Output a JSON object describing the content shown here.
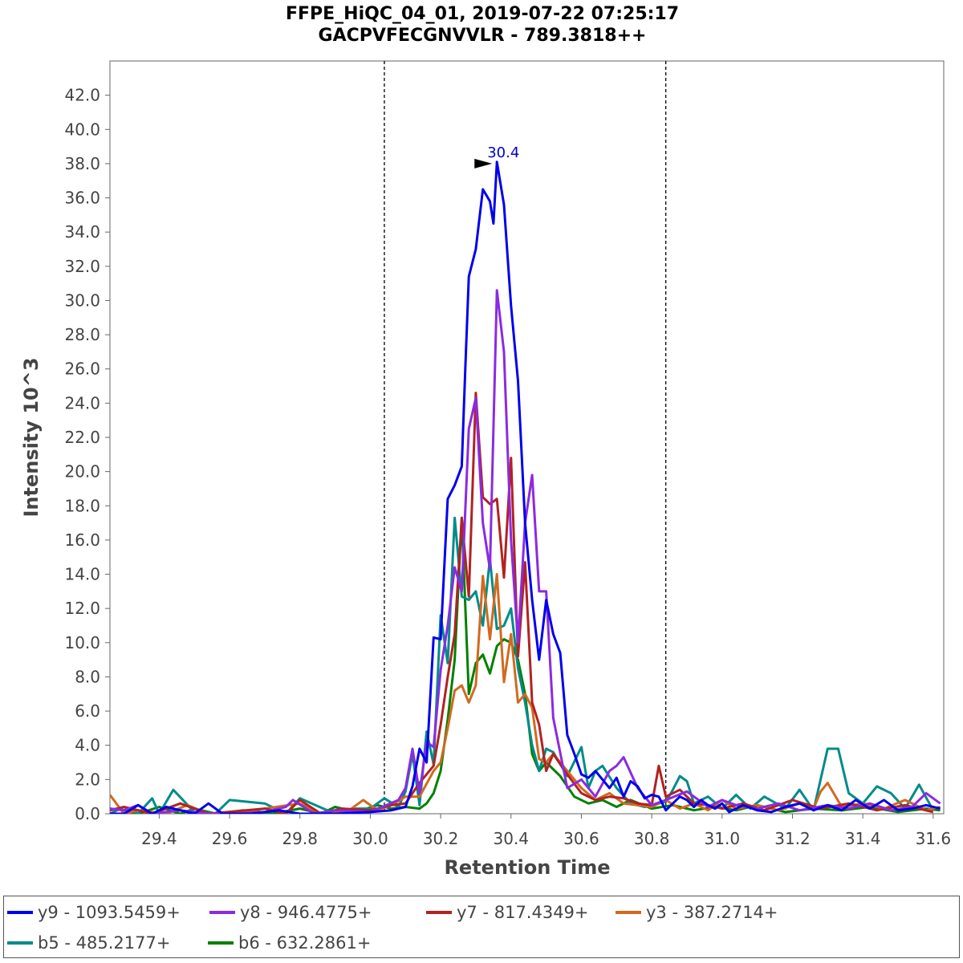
{
  "chart_data": {
    "type": "line",
    "title": "FFPE_HiQC_04_01, 2019-07-22 07:25:17",
    "subtitle": "GACPVFECGNVVLR - 789.3818++",
    "xlabel": "Retention Time",
    "ylabel": "Intensity 10^3",
    "xlim": [
      29.26,
      31.63
    ],
    "ylim": [
      0,
      44
    ],
    "xticks": [
      "29.4",
      "29.6",
      "29.8",
      "30.0",
      "30.2",
      "30.4",
      "30.6",
      "30.8",
      "31.0",
      "31.2",
      "31.4",
      "31.6"
    ],
    "yticks": [
      "0.0",
      "2.0",
      "4.0",
      "6.0",
      "8.0",
      "10.0",
      "12.0",
      "14.0",
      "16.0",
      "18.0",
      "20.0",
      "22.0",
      "24.0",
      "26.0",
      "28.0",
      "30.0",
      "32.0",
      "34.0",
      "36.0",
      "38.0",
      "40.0",
      "42.0"
    ],
    "boundaries": [
      30.04,
      30.84
    ],
    "peak_annotation": {
      "label": "30.4",
      "x": 30.36,
      "y": 38.0
    },
    "series": [
      {
        "name": "y9 - 1093.5459+",
        "color": "#0000ee",
        "x": [
          29.26,
          29.3,
          29.34,
          29.38,
          29.42,
          29.5,
          29.54,
          29.58,
          29.66,
          29.74,
          29.8,
          29.9,
          30.0,
          30.06,
          30.1,
          30.12,
          30.14,
          30.16,
          30.18,
          30.2,
          30.22,
          30.24,
          30.26,
          30.27,
          30.28,
          30.3,
          30.32,
          30.34,
          30.35,
          30.36,
          30.38,
          30.4,
          30.42,
          30.44,
          30.46,
          30.48,
          30.5,
          30.52,
          30.54,
          30.56,
          30.58,
          30.6,
          30.62,
          30.64,
          30.66,
          30.68,
          30.7,
          30.72,
          30.74,
          30.76,
          30.78,
          30.8,
          30.82,
          30.84,
          30.86,
          30.88,
          30.9,
          30.92,
          30.94,
          30.96,
          30.98,
          31.0,
          31.02,
          31.06,
          31.1,
          31.14,
          31.18,
          31.22,
          31.26,
          31.3,
          31.34,
          31.38,
          31.42,
          31.46,
          31.5,
          31.54,
          31.58,
          31.62
        ],
        "values": [
          0,
          0,
          0.5,
          0,
          0.4,
          0,
          0.6,
          0,
          0,
          0.2,
          0,
          0,
          0.1,
          0.2,
          0.4,
          1.6,
          3.8,
          3.0,
          10.3,
          10.2,
          18.4,
          19.2,
          20.3,
          26.0,
          31.4,
          33.0,
          36.5,
          35.8,
          34.5,
          38.1,
          35.6,
          29.7,
          25.3,
          17.0,
          12.5,
          9.0,
          12.5,
          10.5,
          9.4,
          4.6,
          3.5,
          2.3,
          2.1,
          2.5,
          2.0,
          1.5,
          2.1,
          1.0,
          1.9,
          1.6,
          0.9,
          1.1,
          1.0,
          0.2,
          0.6,
          1.0,
          0.8,
          0.4,
          0.8,
          0.5,
          0.3,
          0.6,
          0.1,
          0.5,
          0.2,
          0.1,
          0.4,
          0.6,
          0.2,
          0.5,
          0.2,
          0.8,
          0.3,
          0.8,
          0.2,
          0.3,
          0.5,
          0.3
        ]
      },
      {
        "name": "y8 - 946.4775+",
        "color": "#8a2be2",
        "x": [
          29.26,
          29.3,
          29.34,
          29.38,
          29.46,
          29.54,
          29.62,
          29.7,
          29.76,
          29.78,
          29.84,
          29.9,
          30.0,
          30.08,
          30.1,
          30.12,
          30.14,
          30.16,
          30.18,
          30.2,
          30.22,
          30.24,
          30.26,
          30.28,
          30.3,
          30.32,
          30.34,
          30.36,
          30.38,
          30.4,
          30.42,
          30.44,
          30.46,
          30.48,
          30.5,
          30.52,
          30.56,
          30.6,
          30.64,
          30.68,
          30.7,
          30.72,
          30.76,
          30.8,
          30.84,
          30.9,
          30.96,
          31.0,
          31.04,
          31.1,
          31.16,
          31.22,
          31.3,
          31.36,
          31.42,
          31.48,
          31.54,
          31.58,
          31.62
        ],
        "values": [
          0.3,
          0.2,
          0.5,
          0,
          0.2,
          0,
          0,
          0.1,
          0.4,
          0.8,
          0,
          0.2,
          0.1,
          0.8,
          1.5,
          3.8,
          1.2,
          4.2,
          3.9,
          8.4,
          11.0,
          14.4,
          13.0,
          22.5,
          24.3,
          17.0,
          14.3,
          30.6,
          27.0,
          16.0,
          10.0,
          17.0,
          19.8,
          13.0,
          13.0,
          5.6,
          1.5,
          2.0,
          1.0,
          2.5,
          2.8,
          3.3,
          1.5,
          0.5,
          0.8,
          1.3,
          0.4,
          0.8,
          0.5,
          0.3,
          0.6,
          0.2,
          0.5,
          0.3,
          0.6,
          0.2,
          0.4,
          1.2,
          0.6
        ]
      },
      {
        "name": "y7 - 817.4349+",
        "color": "#b22222",
        "x": [
          29.26,
          29.3,
          29.38,
          29.46,
          29.54,
          29.7,
          29.76,
          29.8,
          29.86,
          29.92,
          30.0,
          30.06,
          30.1,
          30.14,
          30.18,
          30.2,
          30.22,
          30.24,
          30.26,
          30.28,
          30.3,
          30.32,
          30.34,
          30.36,
          30.38,
          30.4,
          30.42,
          30.44,
          30.46,
          30.48,
          30.5,
          30.52,
          30.56,
          30.6,
          30.64,
          30.68,
          30.72,
          30.76,
          30.8,
          30.82,
          30.84,
          30.88,
          30.92,
          30.96,
          31.0,
          31.06,
          31.12,
          31.2,
          31.28,
          31.36,
          31.44,
          31.52,
          31.6
        ],
        "values": [
          0.2,
          0.4,
          0,
          0.6,
          0,
          0.3,
          0,
          0.8,
          0,
          0.3,
          0.2,
          0.5,
          0.6,
          1.8,
          2.8,
          5.2,
          8.0,
          10.5,
          17.3,
          12.7,
          24.6,
          18.5,
          18.1,
          18.4,
          13.8,
          20.8,
          9.2,
          14.7,
          6.5,
          5.2,
          2.5,
          3.5,
          2.3,
          1.2,
          0.8,
          1.0,
          0.9,
          0.6,
          0.5,
          2.8,
          1.0,
          1.4,
          0.6,
          0.5,
          0.3,
          0.6,
          0.2,
          0.8,
          0.3,
          0.6,
          0.2,
          0.5,
          0.1
        ]
      },
      {
        "name": "y3 - 387.2714+",
        "color": "#d2691e",
        "x": [
          29.26,
          29.3,
          29.34,
          29.42,
          29.48,
          29.54,
          29.62,
          29.7,
          29.8,
          29.86,
          29.94,
          29.98,
          30.02,
          30.06,
          30.1,
          30.14,
          30.18,
          30.2,
          30.22,
          30.24,
          30.26,
          30.28,
          30.3,
          30.32,
          30.34,
          30.36,
          30.38,
          30.4,
          30.42,
          30.44,
          30.46,
          30.48,
          30.5,
          30.52,
          30.56,
          30.6,
          30.64,
          30.68,
          30.72,
          30.76,
          30.8,
          30.84,
          30.88,
          30.92,
          30.96,
          31.0,
          31.04,
          31.1,
          31.16,
          31.22,
          31.26,
          31.28,
          31.3,
          31.34,
          31.4,
          31.46,
          31.52,
          31.58,
          31.62
        ],
        "values": [
          1.1,
          0,
          0.2,
          0,
          0.5,
          0,
          0,
          0.3,
          0.6,
          0,
          0.2,
          0.8,
          0.2,
          0.5,
          1.0,
          1.0,
          2.5,
          3.0,
          5.0,
          7.2,
          7.5,
          6.5,
          7.5,
          13.9,
          10.2,
          14.0,
          7.7,
          10.5,
          6.5,
          7.0,
          6.2,
          3.2,
          3.0,
          3.5,
          2.5,
          1.5,
          0.8,
          1.2,
          0.6,
          0.5,
          0.4,
          0.8,
          0.3,
          0.6,
          0.2,
          0.8,
          0.3,
          0.5,
          0.2,
          0.6,
          0.3,
          1.3,
          1.8,
          0.4,
          0.6,
          0.3,
          0.8,
          0.2,
          0.4
        ]
      },
      {
        "name": "b5 - 485.2177+",
        "color": "#008b8b",
        "x": [
          29.26,
          29.3,
          29.34,
          29.38,
          29.4,
          29.44,
          29.5,
          29.56,
          29.6,
          29.7,
          29.76,
          29.8,
          29.9,
          29.96,
          30.0,
          30.04,
          30.08,
          30.1,
          30.12,
          30.14,
          30.16,
          30.18,
          30.2,
          30.22,
          30.24,
          30.26,
          30.28,
          30.3,
          30.32,
          30.34,
          30.36,
          30.38,
          30.4,
          30.42,
          30.44,
          30.46,
          30.48,
          30.5,
          30.52,
          30.56,
          30.6,
          30.62,
          30.64,
          30.66,
          30.7,
          30.74,
          30.78,
          30.84,
          30.86,
          30.88,
          30.9,
          30.92,
          30.96,
          31.0,
          31.04,
          31.08,
          31.12,
          31.18,
          31.22,
          31.26,
          31.3,
          31.33,
          31.36,
          31.4,
          31.44,
          31.48,
          31.52,
          31.56,
          31.6
        ],
        "values": [
          0,
          0.4,
          0,
          0.9,
          0,
          1.4,
          0.1,
          0,
          0.8,
          0.6,
          0,
          0.9,
          0,
          0.3,
          0.3,
          0.9,
          0.4,
          1.3,
          3.5,
          0.5,
          4.8,
          2.9,
          11.6,
          8.8,
          17.3,
          12.7,
          12.5,
          13.0,
          11.0,
          14.9,
          10.8,
          11.0,
          12.0,
          8.5,
          6.5,
          4.0,
          2.5,
          3.8,
          3.6,
          2.2,
          3.9,
          1.5,
          2.5,
          2.8,
          1.5,
          0.6,
          0.4,
          0.7,
          1.4,
          2.2,
          1.9,
          0.6,
          1.0,
          0.3,
          1.1,
          0.3,
          1.0,
          0.3,
          1.4,
          0.2,
          3.8,
          3.8,
          1.2,
          0.6,
          1.6,
          1.2,
          0.3,
          1.7,
          0.2
        ]
      },
      {
        "name": "b6 - 632.2861+",
        "color": "#008000",
        "x": [
          29.26,
          29.3,
          29.34,
          29.4,
          29.46,
          29.5,
          29.56,
          29.64,
          29.72,
          29.8,
          29.86,
          29.9,
          29.96,
          30.02,
          30.06,
          30.1,
          30.14,
          30.16,
          30.18,
          30.2,
          30.22,
          30.24,
          30.26,
          30.28,
          30.3,
          30.32,
          30.34,
          30.36,
          30.38,
          30.4,
          30.42,
          30.44,
          30.46,
          30.48,
          30.5,
          30.54,
          30.58,
          30.62,
          30.66,
          30.7,
          30.74,
          30.8,
          30.86,
          30.92,
          30.98,
          31.04,
          31.1,
          31.18,
          31.26,
          31.34,
          31.42,
          31.5,
          31.58,
          31.62
        ],
        "values": [
          0.3,
          0.2,
          0,
          0.4,
          0,
          0.3,
          0,
          0.2,
          0,
          0.3,
          0,
          0.4,
          0.1,
          0.5,
          0.3,
          0.4,
          0.3,
          0.6,
          1.2,
          2.5,
          5.5,
          9.0,
          17.3,
          7.0,
          8.8,
          9.3,
          8.2,
          9.8,
          10.2,
          10.0,
          9.0,
          7.0,
          3.5,
          2.5,
          3.0,
          2.2,
          1.0,
          0.6,
          0.8,
          0.4,
          0.8,
          0.3,
          0.5,
          0.2,
          0.4,
          0.2,
          0.5,
          0.1,
          0.3,
          0.2,
          0.4,
          0.1,
          0.3,
          0.2
        ]
      }
    ]
  }
}
